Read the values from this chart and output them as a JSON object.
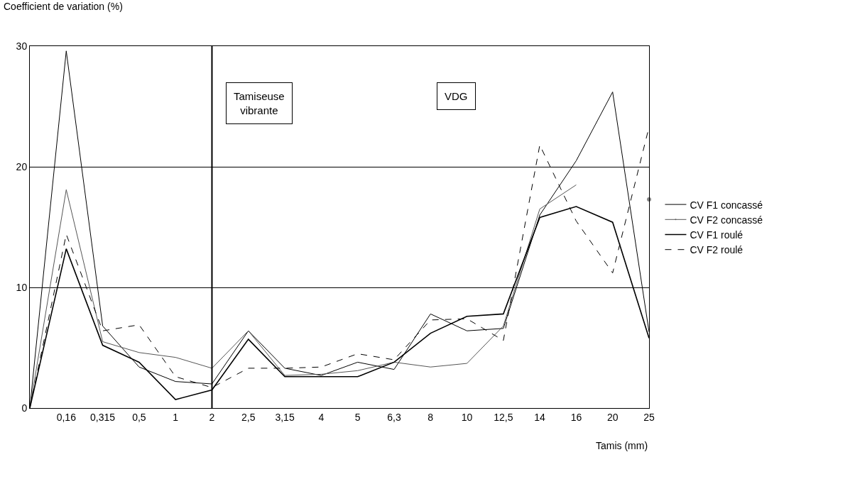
{
  "chart_data": {
    "type": "line",
    "xlabel": "Tamis (mm)",
    "ylabel": "Coefficient de variation (%)",
    "categories": [
      null,
      "0,16",
      "0,315",
      "0,5",
      "1",
      "2",
      "2,5",
      "3,15",
      "4",
      "5",
      "6,3",
      "8",
      "10",
      "12,5",
      "14",
      "16",
      "20",
      "25"
    ],
    "series": [
      {
        "name": "CV F1 concassé",
        "color": "#000000",
        "line_style": "solid",
        "values": [
          0,
          29.6,
          6.8,
          3.4,
          2.2,
          2.0,
          6.4,
          3.3,
          2.7,
          3.8,
          3.2,
          7.8,
          6.4,
          6.6,
          16.0,
          20.5,
          26.2,
          6.3
        ]
      },
      {
        "name": "CV F2 concassé",
        "color": "#555555",
        "line_style": "solid",
        "values": [
          0,
          18.1,
          5.5,
          4.6,
          4.2,
          3.3,
          6.4,
          2.7,
          2.8,
          3.1,
          3.8,
          3.4,
          3.7,
          6.8,
          16.5,
          18.5,
          null,
          17.3
        ]
      },
      {
        "name": "CV F1 roulé",
        "color": "#000000",
        "line_style": "solid",
        "values": [
          0,
          13.2,
          5.2,
          3.8,
          0.7,
          1.5,
          5.7,
          2.6,
          2.6,
          2.6,
          3.8,
          6.2,
          7.6,
          7.8,
          15.8,
          16.7,
          15.4,
          5.8
        ]
      },
      {
        "name": "CV F2 roulé",
        "color": "#000000",
        "line_style": "dashed",
        "values": [
          0,
          14.4,
          6.4,
          6.9,
          2.6,
          1.7,
          3.3,
          3.3,
          3.4,
          4.5,
          4.0,
          7.3,
          7.4,
          5.6,
          21.8,
          15.5,
          11.2,
          23.3
        ]
      }
    ],
    "ylim": [
      0,
      30
    ],
    "yticks": [
      0,
      10,
      20,
      30
    ],
    "grid": "y",
    "legend": "right",
    "marker": "none",
    "ref_lines": [
      {
        "axis": "x",
        "value": "2",
        "color": "#000000",
        "line_style": "solid"
      }
    ],
    "annotations": [
      "Tamiseuse\nvibrante",
      "VDG"
    ]
  }
}
